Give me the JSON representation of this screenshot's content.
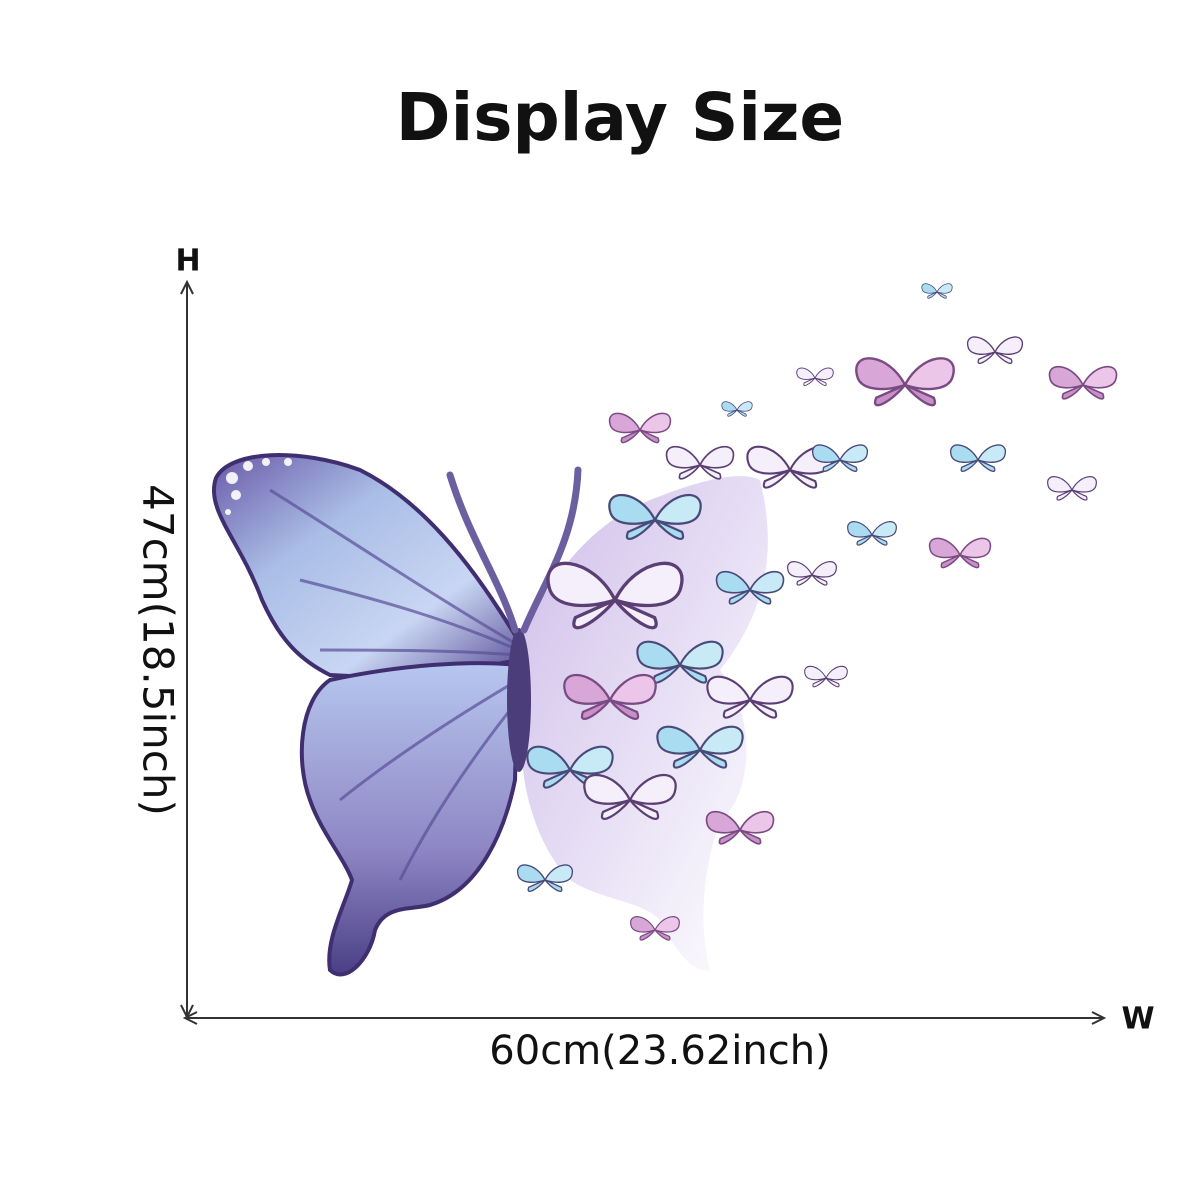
{
  "header": {
    "title": "Display Size"
  },
  "dimensions": {
    "height_axis": "H",
    "width_axis": "W",
    "height": "47cm(18.5inch)",
    "width": "60cm(23.62inch)"
  }
}
